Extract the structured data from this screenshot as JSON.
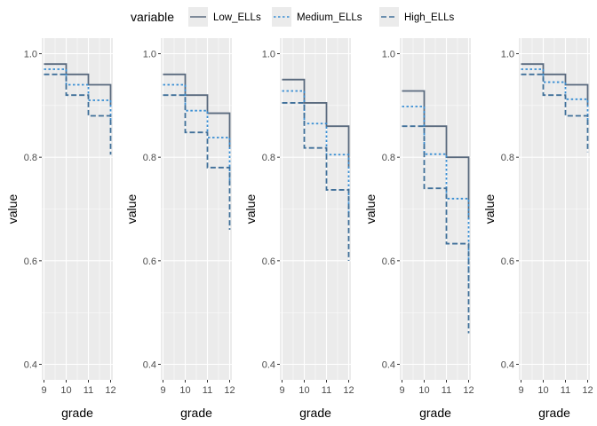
{
  "chart_data": {
    "type": "line",
    "step": true,
    "legend": {
      "title": "variable",
      "position": "top",
      "entries": [
        {
          "name": "Low_ELLs",
          "color": "#5a6a7e",
          "dash": "solid"
        },
        {
          "name": "Medium_ELLs",
          "color": "#3a8fd4",
          "dash": "dotted"
        },
        {
          "name": "High_ELLs",
          "color": "#3f6f99",
          "dash": "dashed"
        }
      ]
    },
    "x": [
      9,
      10,
      11,
      12
    ],
    "xlim": [
      8.9,
      12.1
    ],
    "ylim": [
      0.37,
      1.03
    ],
    "xticks": [
      "9",
      "10",
      "11",
      "12"
    ],
    "yticks": [
      "0.4",
      "0.6",
      "0.8",
      "1.0"
    ],
    "ytick_values": [
      0.4,
      0.6,
      0.8,
      1.0
    ],
    "xlabel": "grade",
    "ylabel": "value",
    "grid": true,
    "panels": [
      {
        "series": [
          {
            "name": "Low_ELLs",
            "values": [
              0.98,
              0.96,
              0.94,
              0.9
            ]
          },
          {
            "name": "Medium_ELLs",
            "values": [
              0.97,
              0.94,
              0.91,
              0.86
            ]
          },
          {
            "name": "High_ELLs",
            "values": [
              0.96,
              0.92,
              0.88,
              0.805
            ]
          }
        ]
      },
      {
        "series": [
          {
            "name": "Low_ELLs",
            "values": [
              0.96,
              0.92,
              0.885,
              0.82
            ]
          },
          {
            "name": "Medium_ELLs",
            "values": [
              0.94,
              0.89,
              0.838,
              0.75
            ]
          },
          {
            "name": "High_ELLs",
            "values": [
              0.92,
              0.848,
              0.78,
              0.66
            ]
          }
        ]
      },
      {
        "series": [
          {
            "name": "Low_ELLs",
            "values": [
              0.95,
              0.905,
              0.86,
              0.78
            ]
          },
          {
            "name": "Medium_ELLs",
            "values": [
              0.928,
              0.865,
              0.805,
              0.68
            ]
          },
          {
            "name": "High_ELLs",
            "values": [
              0.905,
              0.818,
              0.737,
              0.6
            ]
          }
        ]
      },
      {
        "series": [
          {
            "name": "Low_ELLs",
            "values": [
              0.928,
              0.86,
              0.8,
              0.68
            ]
          },
          {
            "name": "Medium_ELLs",
            "values": [
              0.898,
              0.806,
              0.72,
              0.56
            ]
          },
          {
            "name": "High_ELLs",
            "values": [
              0.86,
              0.74,
              0.633,
              0.46
            ]
          }
        ]
      },
      {
        "series": [
          {
            "name": "Low_ELLs",
            "values": [
              0.98,
              0.96,
              0.94,
              0.9
            ]
          },
          {
            "name": "Medium_ELLs",
            "values": [
              0.97,
              0.945,
              0.912,
              0.86
            ]
          },
          {
            "name": "High_ELLs",
            "values": [
              0.96,
              0.92,
              0.88,
              0.81
            ]
          }
        ]
      }
    ]
  }
}
